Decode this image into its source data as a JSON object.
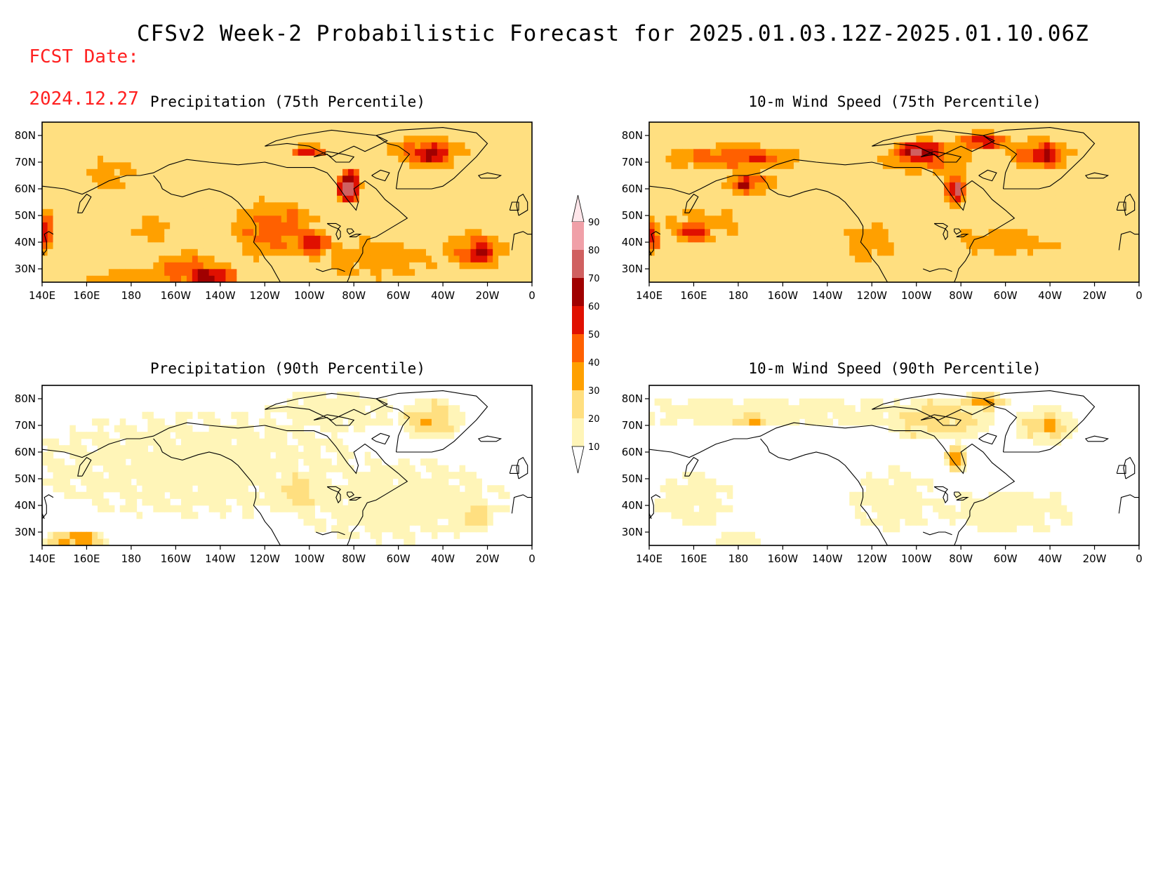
{
  "header": {
    "fcst_label": "FCST Date:",
    "fcst_date": "2024.12.27",
    "title": "CFSv2 Week-2 Probabilistic Forecast for 2025.01.03.12Z-2025.01.10.06Z"
  },
  "axes": {
    "x_ticks": [
      "140E",
      "160E",
      "180",
      "160W",
      "140W",
      "120W",
      "100W",
      "80W",
      "60W",
      "40W",
      "20W",
      "0"
    ],
    "y_ticks": [
      "80N",
      "70N",
      "60N",
      "50N",
      "40N",
      "30N"
    ]
  },
  "colorbar": {
    "levels": [
      "10",
      "20",
      "30",
      "40",
      "50",
      "60",
      "70",
      "80",
      "90"
    ],
    "colors": [
      "#ffffff",
      "#fff5b8",
      "#ffdf80",
      "#ffa000",
      "#ff6000",
      "#e01000",
      "#a00000",
      "#d06060",
      "#f0a0a8",
      "#ffe6ea"
    ]
  },
  "panels": [
    {
      "id": "precip-75",
      "title": "Precipitation (75th Percentile)",
      "base": 2,
      "blobs": [
        [
          170,
          65,
          18,
          10,
          3
        ],
        [
          190,
          45,
          15,
          8,
          3
        ],
        [
          245,
          45,
          24,
          14,
          4
        ],
        [
          262,
          40,
          10,
          6,
          5
        ],
        [
          205,
          29,
          22,
          9,
          4
        ],
        [
          215,
          27,
          14,
          5,
          6
        ],
        [
          278,
          61,
          6,
          7,
          7
        ],
        [
          278,
          62,
          3,
          3,
          8
        ],
        [
          313,
          74,
          22,
          8,
          4
        ],
        [
          315,
          73,
          10,
          5,
          6
        ],
        [
          335,
          37,
          18,
          9,
          4
        ],
        [
          337,
          36,
          8,
          5,
          6
        ],
        [
          290,
          34,
          45,
          12,
          3
        ],
        [
          142,
          45,
          3,
          10,
          5
        ],
        [
          260,
          74,
          9,
          3,
          5
        ],
        [
          235,
          35,
          9,
          9,
          1
        ],
        [
          260,
          26,
          30,
          4,
          2
        ],
        [
          175,
          27,
          25,
          5,
          3
        ]
      ]
    },
    {
      "id": "wind-75",
      "title": "10-m Wind Speed (75th Percentile)",
      "base": 2,
      "blobs": [
        [
          178,
          72,
          40,
          6,
          4
        ],
        [
          185,
          72,
          20,
          3,
          5
        ],
        [
          165,
          47,
          30,
          10,
          3
        ],
        [
          160,
          44,
          10,
          5,
          5
        ],
        [
          185,
          62,
          15,
          6,
          4
        ],
        [
          183,
          62,
          6,
          3,
          6
        ],
        [
          265,
          72,
          25,
          8,
          4
        ],
        [
          262,
          74,
          14,
          5,
          6
        ],
        [
          260,
          74,
          5,
          3,
          7
        ],
        [
          278,
          60,
          6,
          8,
          5
        ],
        [
          279,
          60,
          3,
          5,
          7
        ],
        [
          315,
          73,
          20,
          8,
          4
        ],
        [
          318,
          73,
          8,
          5,
          6
        ],
        [
          300,
          40,
          40,
          8,
          3
        ],
        [
          290,
          78,
          15,
          4,
          5
        ],
        [
          218,
          42,
          10,
          8,
          1
        ],
        [
          142,
          42,
          3,
          8,
          5
        ],
        [
          240,
          40,
          20,
          12,
          3
        ]
      ]
    },
    {
      "id": "precip-90",
      "title": "Precipitation (90th Percentile)",
      "base": 0,
      "blobs": [
        [
          210,
          55,
          80,
          20,
          1
        ],
        [
          300,
          42,
          50,
          16,
          1
        ],
        [
          315,
          72,
          15,
          8,
          2
        ],
        [
          313,
          71,
          5,
          3,
          3
        ],
        [
          155,
          27,
          14,
          4,
          3
        ],
        [
          270,
          75,
          30,
          8,
          1
        ],
        [
          255,
          45,
          12,
          8,
          2
        ],
        [
          335,
          36,
          8,
          6,
          2
        ]
      ]
    },
    {
      "id": "wind-90",
      "title": "10-m Wind Speed (90th Percentile)",
      "base": 0,
      "blobs": [
        [
          200,
          75,
          80,
          6,
          1
        ],
        [
          270,
          72,
          25,
          8,
          2
        ],
        [
          318,
          70,
          14,
          7,
          2
        ],
        [
          320,
          70,
          5,
          3,
          3
        ],
        [
          278,
          58,
          5,
          6,
          3
        ],
        [
          278,
          57,
          2,
          3,
          4
        ],
        [
          290,
          79,
          12,
          3,
          3
        ],
        [
          185,
          72,
          8,
          2,
          3
        ],
        [
          160,
          42,
          18,
          10,
          1
        ],
        [
          300,
          38,
          35,
          8,
          1
        ],
        [
          250,
          42,
          20,
          12,
          1
        ],
        [
          180,
          27,
          10,
          3,
          1
        ]
      ]
    }
  ]
}
